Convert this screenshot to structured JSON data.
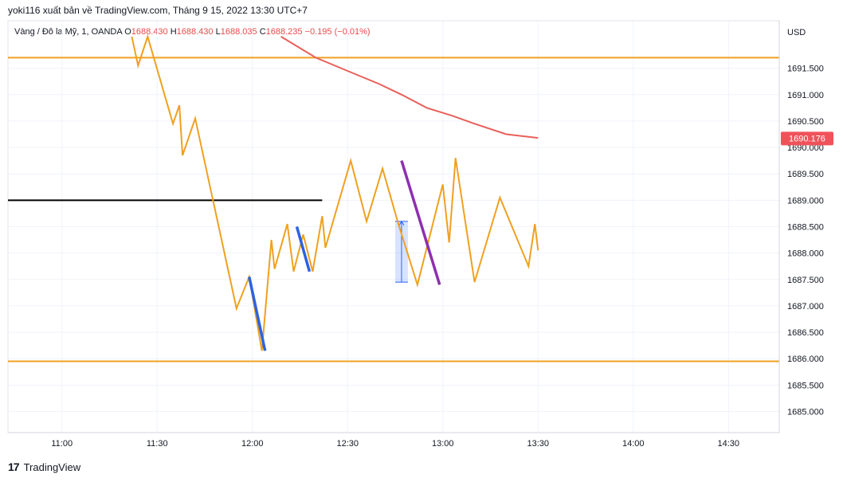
{
  "header": {
    "title": "yoki116 xuất bản về TradingView.com, Tháng 9 15, 2022 13:30 UTC+7"
  },
  "legend": {
    "symbol": "Vàng / Đô la Mỹ, 1, OANDA",
    "o_label": "O",
    "o_value": "1688.430",
    "h_label": "H",
    "h_value": "1688.430",
    "l_label": "L",
    "l_value": "1688.035",
    "c_label": "C",
    "c_value": "1688.235",
    "change": "−0.195 (−0.01%)"
  },
  "footer": {
    "brand": "TradingView",
    "logo_glyph": "17"
  },
  "colors": {
    "price_line": "#f0a020",
    "ma_line": "#e8605a",
    "horizontal_level": "#f0a020",
    "black_level": "#000000",
    "blue_segment": "#2e62e0",
    "purple_segment": "#8e2fb0",
    "price_badge": "#f0525a",
    "grid": "#f0f3fa"
  },
  "chart_data": {
    "type": "line",
    "currency_label": "USD",
    "y_ticks": [
      "1691.500",
      "1691.000",
      "1690.500",
      "1690.000",
      "1689.500",
      "1689.000",
      "1688.500",
      "1688.000",
      "1687.500",
      "1687.000",
      "1686.500",
      "1686.000",
      "1685.500",
      "1685.000"
    ],
    "x_ticks": [
      "11:00",
      "11:30",
      "12:00",
      "12:30",
      "13:00",
      "13:30",
      "14:00",
      "14:30"
    ],
    "current_price_badge": "1690.176",
    "series": [
      {
        "values": [
          {
            "t": "11:22",
            "v": 1692.1
          },
          {
            "t": "11:24",
            "v": 1691.55
          },
          {
            "t": "11:27",
            "v": 1692.1
          },
          {
            "t": "11:35",
            "v": 1690.45
          },
          {
            "t": "11:37",
            "v": 1690.8
          },
          {
            "t": "11:38",
            "v": 1689.85
          },
          {
            "t": "11:42",
            "v": 1690.55
          },
          {
            "t": "11:55",
            "v": 1686.95
          },
          {
            "t": "11:59",
            "v": 1687.55
          },
          {
            "t": "12:03",
            "v": 1686.15
          },
          {
            "t": "12:06",
            "v": 1688.25
          },
          {
            "t": "12:07",
            "v": 1687.7
          },
          {
            "t": "12:11",
            "v": 1688.55
          },
          {
            "t": "12:13",
            "v": 1687.65
          },
          {
            "t": "12:16",
            "v": 1688.35
          },
          {
            "t": "12:19",
            "v": 1687.65
          },
          {
            "t": "12:22",
            "v": 1688.7
          },
          {
            "t": "12:23",
            "v": 1688.1
          },
          {
            "t": "12:31",
            "v": 1689.75
          },
          {
            "t": "12:36",
            "v": 1688.6
          },
          {
            "t": "12:41",
            "v": 1689.6
          },
          {
            "t": "12:46",
            "v": 1688.55
          },
          {
            "t": "12:52",
            "v": 1687.4
          },
          {
            "t": "13:00",
            "v": 1689.3
          },
          {
            "t": "13:02",
            "v": 1688.2
          },
          {
            "t": "13:04",
            "v": 1689.8
          },
          {
            "t": "13:10",
            "v": 1687.45
          },
          {
            "t": "13:18",
            "v": 1689.05
          },
          {
            "t": "13:27",
            "v": 1687.75
          },
          {
            "t": "13:29",
            "v": 1688.55
          },
          {
            "t": "13:30",
            "v": 1688.05
          }
        ]
      },
      {
        "values": [
          {
            "t": "12:09",
            "v": 1692.1
          },
          {
            "t": "12:20",
            "v": 1691.7
          },
          {
            "t": "12:30",
            "v": 1691.45
          },
          {
            "t": "12:40",
            "v": 1691.2
          },
          {
            "t": "12:47",
            "v": 1691.0
          },
          {
            "t": "12:55",
            "v": 1690.75
          },
          {
            "t": "13:03",
            "v": 1690.6
          },
          {
            "t": "13:10",
            "v": 1690.45
          },
          {
            "t": "13:20",
            "v": 1690.25
          },
          {
            "t": "13:30",
            "v": 1690.18
          }
        ]
      }
    ],
    "horizontal_lines": [
      {
        "v": 1691.7,
        "color": "#f0a020"
      },
      {
        "v": 1685.95,
        "color": "#f0a020"
      },
      {
        "v": 1689.0,
        "color": "#000000",
        "end_t": "12:22"
      }
    ],
    "segments": [
      {
        "t1": "11:59",
        "v1": 1687.55,
        "t2": "12:04",
        "v2": 1686.15,
        "color": "#2e62e0"
      },
      {
        "t1": "12:14",
        "v1": 1688.5,
        "t2": "12:18",
        "v2": 1687.65,
        "color": "#2e62e0"
      },
      {
        "t1": "12:47",
        "v1": 1689.75,
        "t2": "12:59",
        "v2": 1687.4,
        "color": "#8e2fb0"
      }
    ],
    "range_box": {
      "t1": "12:45",
      "t2": "12:49",
      "v1": 1688.6,
      "v2": 1687.45
    },
    "ylim": [
      1684.6,
      1692.4
    ],
    "xlim": [
      "10:43",
      "14:46"
    ],
    "grid": true
  }
}
